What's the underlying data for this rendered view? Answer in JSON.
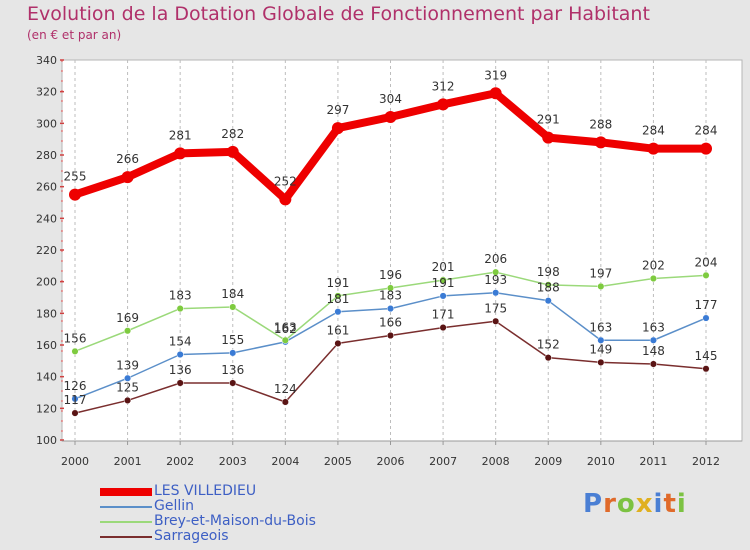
{
  "title": "Evolution de la Dotation Globale de Fonctionnement par Habitant",
  "subtitle": "(en € et par an)",
  "logo": {
    "text": "Proxiti",
    "letter_colors": [
      "#4a7fd4",
      "#e06a2a",
      "#7cc242",
      "#e0b020",
      "#4a7fd4",
      "#e06a2a",
      "#7cc242"
    ]
  },
  "chart_data": {
    "type": "line",
    "title": "Evolution de la Dotation Globale de Fonctionnement par Habitant",
    "ylabel": "(en € et par an)",
    "x": [
      "2000",
      "2001",
      "2002",
      "2003",
      "2004",
      "2005",
      "2006",
      "2007",
      "2008",
      "2009",
      "2010",
      "2011",
      "2012"
    ],
    "ylim": [
      100,
      340
    ],
    "yticks": [
      100,
      120,
      140,
      160,
      180,
      200,
      220,
      240,
      260,
      280,
      300,
      320,
      340
    ],
    "series": [
      {
        "name": "LES VILLEDIEU",
        "color": "#ee0000",
        "emphasis": true,
        "values": [
          255,
          266,
          281,
          282,
          252,
          297,
          304,
          312,
          319,
          291,
          288,
          284,
          284
        ],
        "labels": [
          "255",
          "266",
          "281",
          "282",
          "252",
          "297",
          "304",
          "312",
          "319",
          "291",
          "288",
          "284",
          "284"
        ]
      },
      {
        "name": "Gellin",
        "color": "#5b8fc9",
        "marker": "#3a7bd5",
        "values": [
          126,
          139,
          154,
          155,
          162,
          181,
          183,
          191,
          193,
          188,
          163,
          163,
          177
        ],
        "labels": [
          "126",
          "139",
          "154",
          "155",
          "162",
          "181",
          "183",
          "191",
          "193",
          "188",
          "163",
          "163",
          "177"
        ]
      },
      {
        "name": "Brey-et-Maison-du-Bois",
        "color": "#9bd97a",
        "marker": "#7ecb3f",
        "values": [
          156,
          169,
          183,
          184,
          163,
          191,
          196,
          201,
          206,
          198,
          197,
          202,
          204
        ],
        "labels": [
          "156",
          "169",
          "183",
          "184",
          "163",
          "191",
          "196",
          "201",
          "206",
          "198",
          "197",
          "202",
          "204"
        ]
      },
      {
        "name": "Sarrageois",
        "color": "#7a2e2e",
        "marker": "#5a1414",
        "values": [
          117,
          125,
          136,
          136,
          124,
          161,
          166,
          171,
          175,
          152,
          149,
          148,
          145
        ],
        "labels": [
          "117",
          "125",
          "136",
          "136",
          "124",
          "161",
          "166",
          "171",
          "175",
          "152",
          "149",
          "148",
          "145"
        ]
      }
    ]
  }
}
